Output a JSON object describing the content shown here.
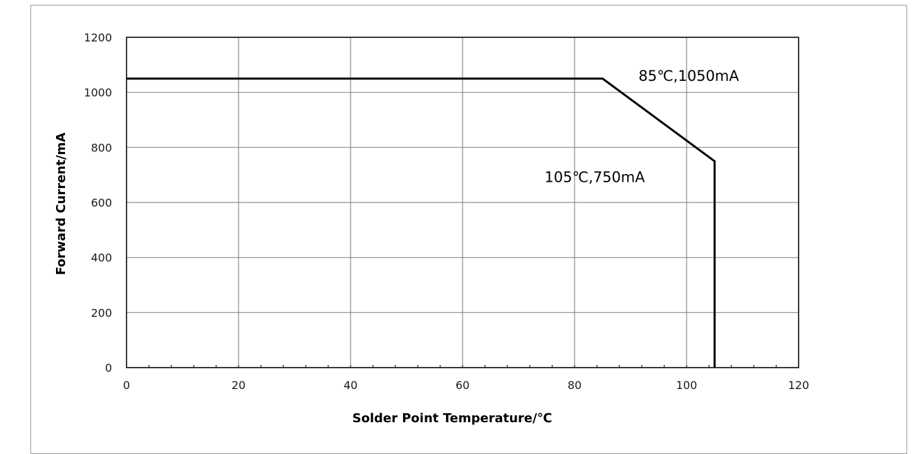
{
  "chart_data": {
    "type": "line",
    "title": "",
    "xlabel": "Solder Point Temperature/℃",
    "ylabel": "Forward Current/mA",
    "xlim": [
      0,
      120
    ],
    "ylim": [
      0,
      1200
    ],
    "x_ticks": [
      0,
      20,
      40,
      60,
      80,
      100,
      120
    ],
    "y_ticks": [
      0,
      200,
      400,
      600,
      800,
      1000,
      1200
    ],
    "x_tick_labels": [
      "0",
      "20",
      "40",
      "60",
      "80",
      "100",
      "120"
    ],
    "y_tick_labels": [
      "0",
      "200",
      "400",
      "600",
      "800",
      "1000",
      "1200"
    ],
    "grid": true,
    "legend": "none",
    "series": [
      {
        "x": [
          0,
          85,
          105,
          105
        ],
        "y": [
          1050,
          1050,
          750,
          0
        ],
        "color": "#000000"
      }
    ],
    "annotations": [
      {
        "text": "85℃,1050mA",
        "x": 85,
        "y": 1050
      },
      {
        "text": "105℃,750mA",
        "x": 105,
        "y": 750
      }
    ]
  }
}
